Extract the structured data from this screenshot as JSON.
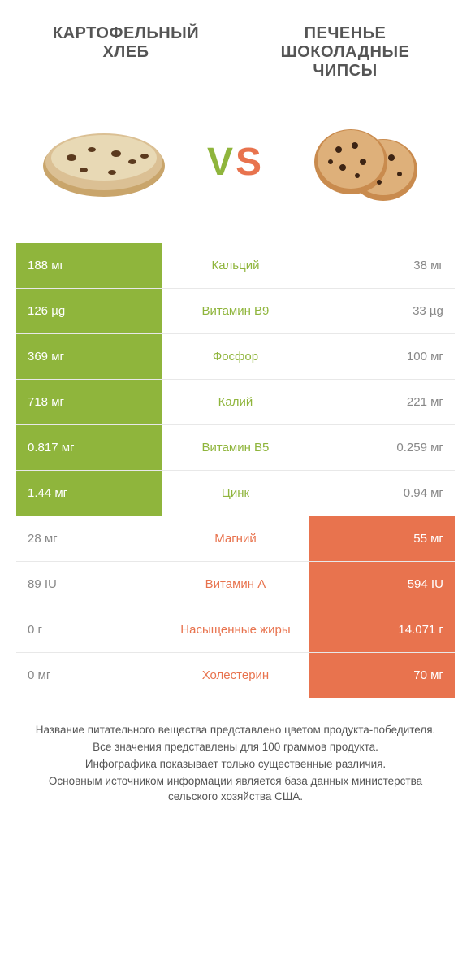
{
  "colors": {
    "left": "#8fb53c",
    "right": "#e8734e",
    "text": "#555555",
    "loser_text": "#888888",
    "border": "#e8e8e8",
    "bg": "#ffffff"
  },
  "typography": {
    "title_fontsize": 20,
    "vs_fontsize": 48,
    "cell_fontsize": 15,
    "footer_fontsize": 13.5
  },
  "titles": {
    "left": "КАРТОФЕЛЬНЫЙ ХЛЕБ",
    "right": "ПЕЧЕНЬЕ ШОКОЛАДНЫЕ ЧИПСЫ",
    "vs_v": "V",
    "vs_s": "S"
  },
  "rows": [
    {
      "left": "188 мг",
      "nutrient": "Кальций",
      "right": "38 мг",
      "winner": "left"
    },
    {
      "left": "126 µg",
      "nutrient": "Витамин B9",
      "right": "33 µg",
      "winner": "left"
    },
    {
      "left": "369 мг",
      "nutrient": "Фосфор",
      "right": "100 мг",
      "winner": "left"
    },
    {
      "left": "718 мг",
      "nutrient": "Калий",
      "right": "221 мг",
      "winner": "left"
    },
    {
      "left": "0.817 мг",
      "nutrient": "Витамин B5",
      "right": "0.259 мг",
      "winner": "left"
    },
    {
      "left": "1.44 мг",
      "nutrient": "Цинк",
      "right": "0.94 мг",
      "winner": "left"
    },
    {
      "left": "28 мг",
      "nutrient": "Магний",
      "right": "55 мг",
      "winner": "right"
    },
    {
      "left": "89 IU",
      "nutrient": "Витамин A",
      "right": "594 IU",
      "winner": "right"
    },
    {
      "left": "0 г",
      "nutrient": "Насыщенные жиры",
      "right": "14.071 г",
      "winner": "right"
    },
    {
      "left": "0 мг",
      "nutrient": "Холестерин",
      "right": "70 мг",
      "winner": "right"
    }
  ],
  "footer": [
    "Название питательного вещества представлено цветом продукта-победителя.",
    "Все значения представлены для 100 граммов продукта.",
    "Инфографика показывает только существенные различия.",
    "Основным источником информации является база данных министерства сельского хозяйства США."
  ]
}
